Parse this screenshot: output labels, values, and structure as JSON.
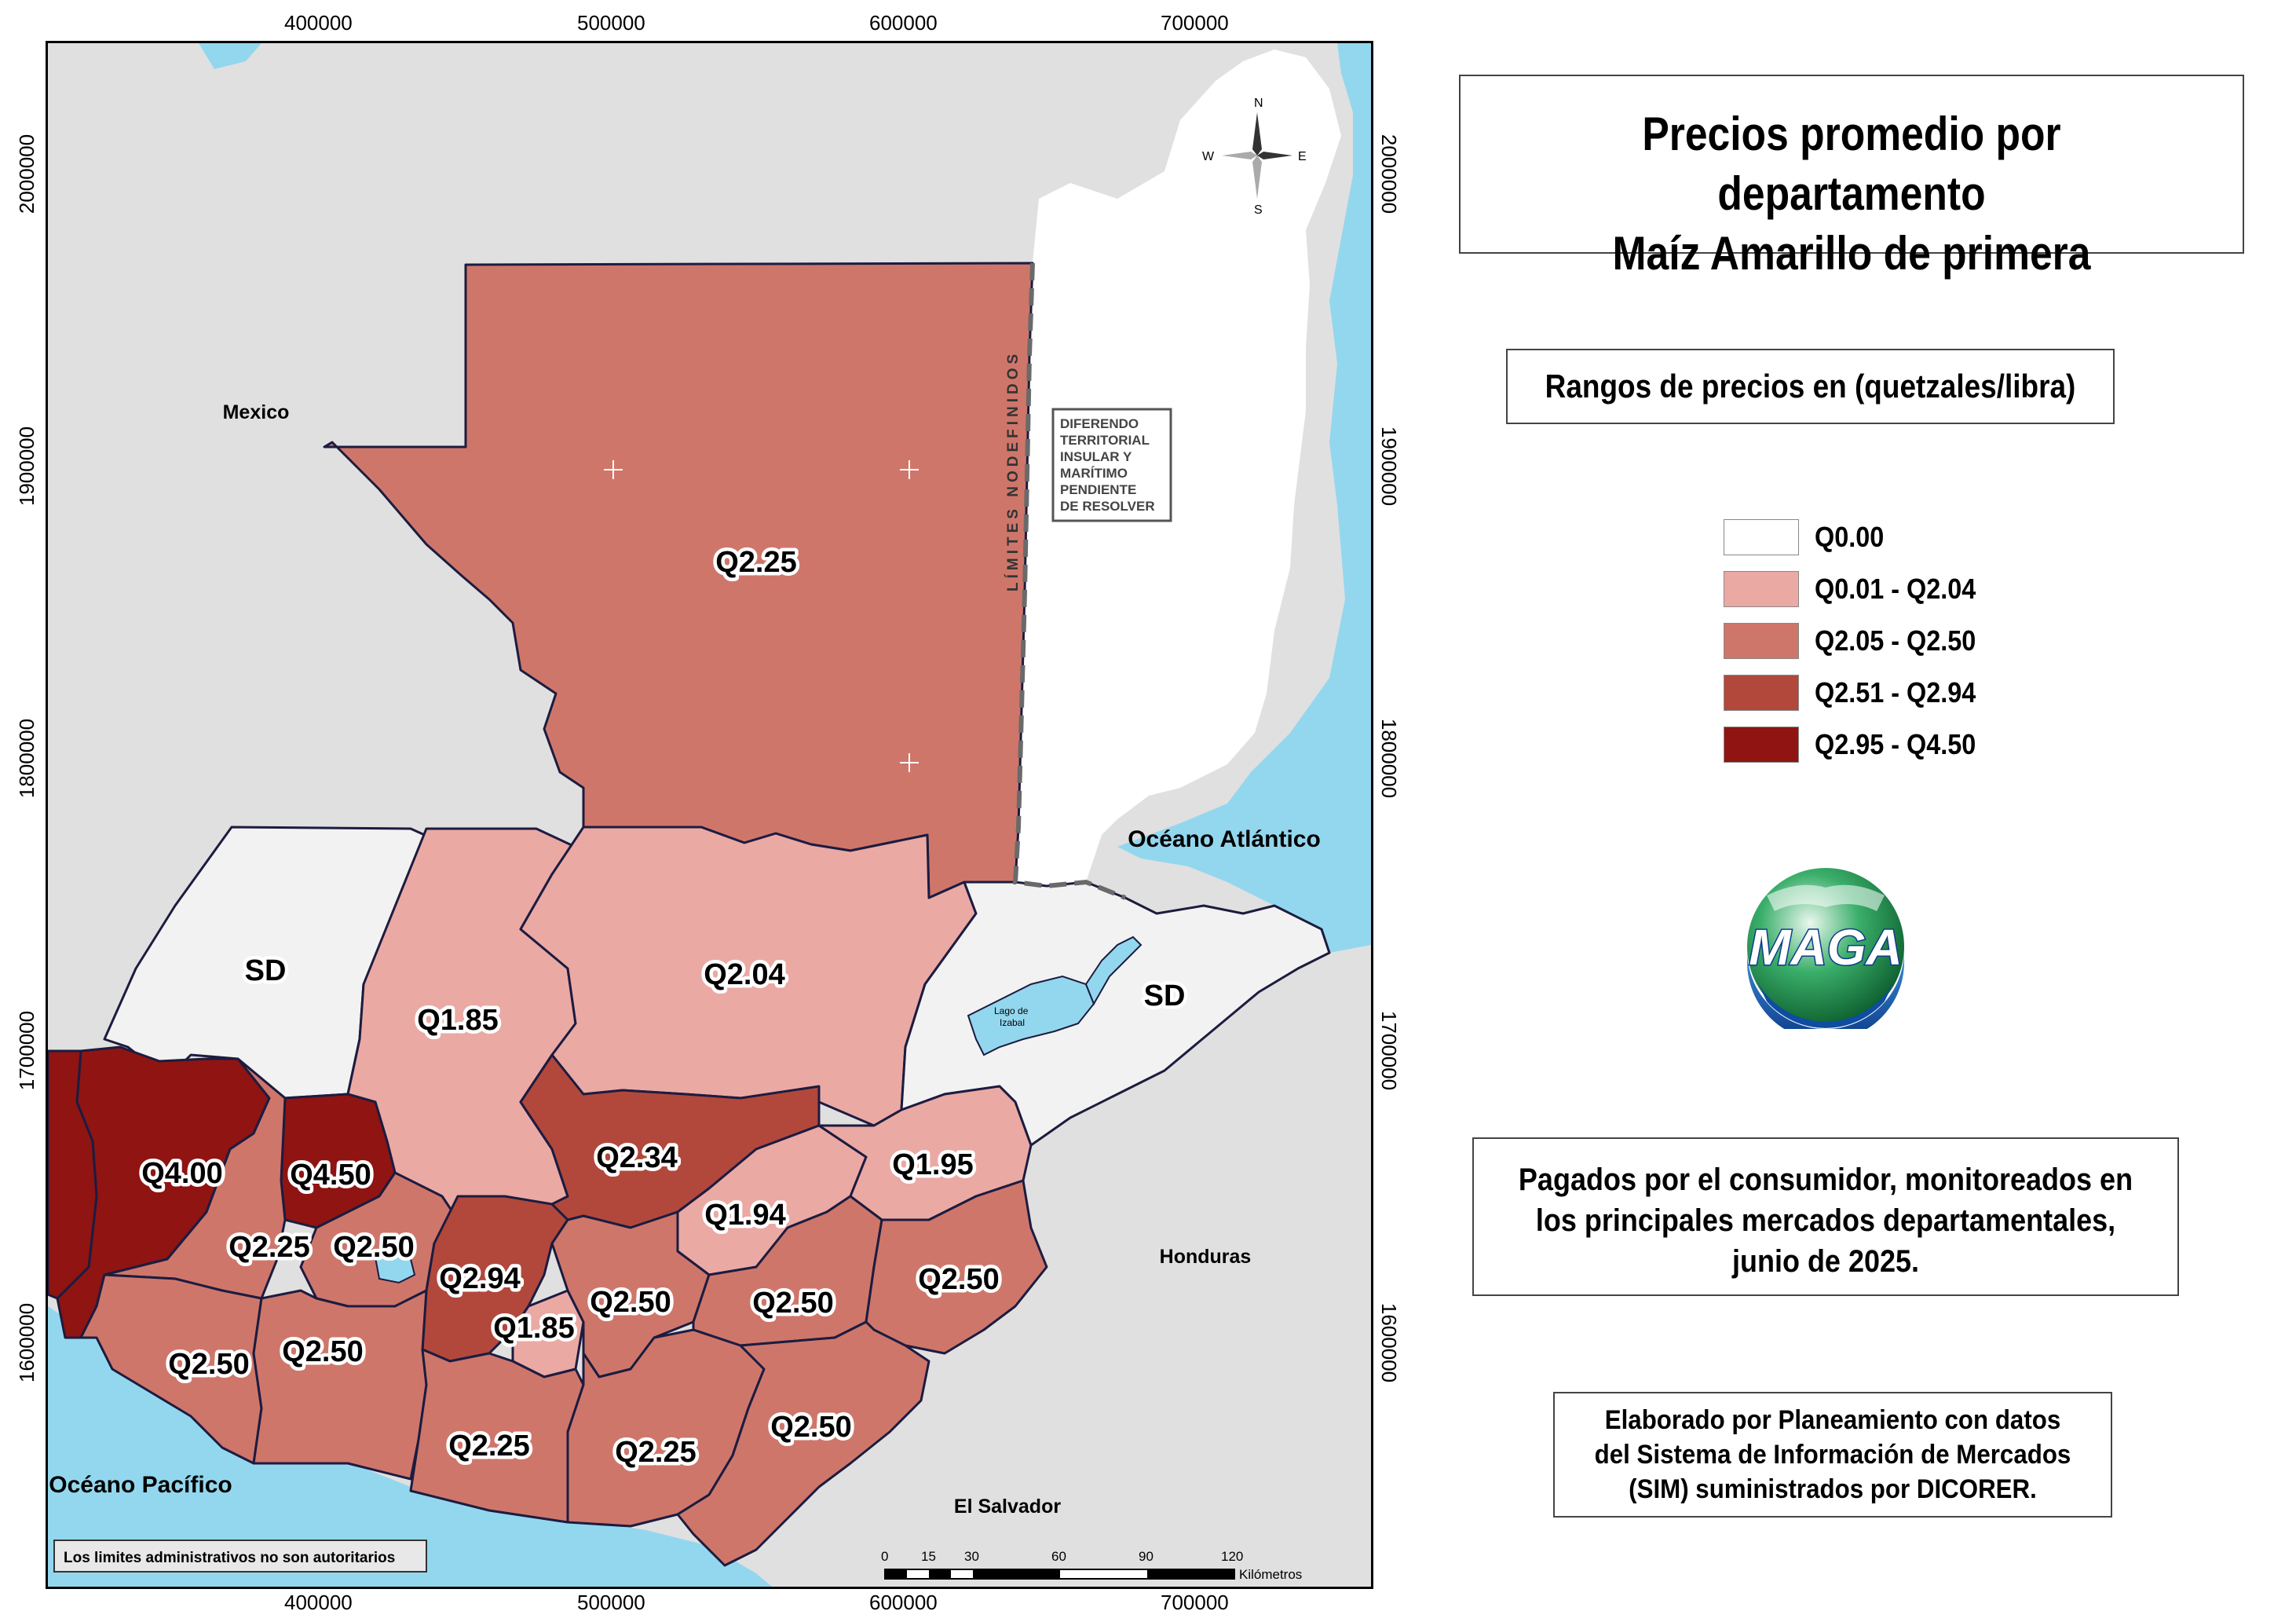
{
  "map": {
    "title_line1": "Precios promedio por departamento",
    "title_line2": "Maíz Amarillo de primera",
    "range_title": "Rangos de precios en (quetzales/libra)",
    "legend": [
      {
        "label": "Q0.00",
        "color": "#ffffff"
      },
      {
        "label": "Q0.01 - Q2.04",
        "color": "#eba9a4"
      },
      {
        "label": "Q2.05 - Q2.50",
        "color": "#cf766b"
      },
      {
        "label": "Q2.51 - Q2.94",
        "color": "#b2483c"
      },
      {
        "label": "Q2.95 - Q4.50",
        "color": "#8f1412"
      }
    ],
    "note_line1": "Pagados por el consumidor, monitoreados en",
    "note_line2": "los principales mercados departamentales,",
    "note_line3": "junio de 2025.",
    "credit_line1": "Elaborado por Planeamiento con datos",
    "credit_line2": "del Sistema de Información de Mercados",
    "credit_line3": "(SIM) suministrados por DICORER.",
    "logo_text": "MAGA",
    "x_ticks": [
      "400000",
      "500000",
      "600000",
      "700000"
    ],
    "y_ticks": [
      "2000000",
      "1900000",
      "1800000",
      "1700000",
      "1600000"
    ],
    "places": {
      "mexico": "Mexico",
      "honduras": "Honduras",
      "el_salvador": "El Salvador",
      "oceano_atlantico": "Océano Atlántico",
      "oceano_pacifico": "Océano Pacífico",
      "lago_izabal_1": "Lago de",
      "lago_izabal_2": "Izabal"
    },
    "limites_label": "LÍMITES NODEFINIDOS",
    "diferendo": [
      "DIFERENDO",
      "TERRITORIAL",
      "INSULAR Y",
      "MARÍTIMO",
      "PENDIENTE",
      "DE RESOLVER"
    ],
    "disclaimer": "Los limites administrativos no son autoritarios",
    "scale": {
      "ticks": [
        "0",
        "15",
        "30",
        "60",
        "90",
        "120"
      ],
      "unit": "Kilómetros"
    },
    "compass": {
      "n": "N",
      "s": "S",
      "e": "E",
      "w": "W"
    },
    "departments": {
      "peten": "Q2.25",
      "alta_verapaz": "Q2.04",
      "quiche": "Q1.85",
      "huehuetenango": "SD",
      "izabal": "SD",
      "san_marcos": "Q4.00",
      "totonicapan": "Q4.50",
      "quetzaltenango": "Q2.25",
      "solola": "Q2.50",
      "chimaltenango": "Q2.94",
      "sacatepequez": "Q1.85",
      "baja_verapaz": "Q2.34",
      "el_progreso": "Q1.94",
      "zacapa": "Q1.95",
      "guatemala": "Q2.50",
      "jalapa": "Q2.50",
      "chiquimula": "Q2.50",
      "retalhuleu": "Q2.50",
      "suchitepequez": "Q2.50",
      "escuintla": "Q2.25",
      "santa_rosa": "Q2.25",
      "jutiapa": "Q2.50"
    }
  }
}
